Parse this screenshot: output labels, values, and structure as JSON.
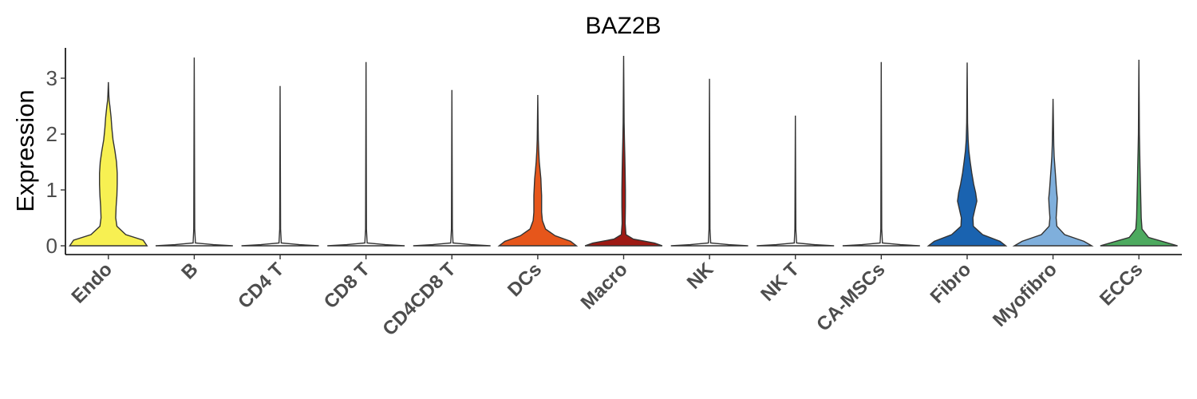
{
  "chart_data": {
    "type": "violin",
    "title": "BAZ2B",
    "ylabel": "Expression",
    "xlabel": "",
    "ylim": [
      -0.15,
      3.55
    ],
    "yticks": [
      0,
      1,
      2,
      3
    ],
    "grid": false,
    "legend": "none",
    "categories": [
      "Endo",
      "B",
      "CD4 T",
      "CD8 T",
      "CD4CD8 T",
      "DCs",
      "Macro",
      "NK",
      "NK T",
      "CA-MSCs",
      "Fibro",
      "Myofibro",
      "ECCs"
    ],
    "series": [
      {
        "color": "#F7F052",
        "max": 2.93,
        "density": [
          [
            0,
            1.0
          ],
          [
            0.1,
            0.9
          ],
          [
            0.2,
            0.45
          ],
          [
            0.35,
            0.22
          ],
          [
            0.5,
            0.19
          ],
          [
            0.7,
            0.2
          ],
          [
            0.9,
            0.22
          ],
          [
            1.1,
            0.23
          ],
          [
            1.3,
            0.23
          ],
          [
            1.5,
            0.21
          ],
          [
            1.7,
            0.17
          ],
          [
            1.9,
            0.12
          ],
          [
            2.1,
            0.09
          ],
          [
            2.3,
            0.07
          ],
          [
            2.5,
            0.04
          ],
          [
            2.6,
            0.02
          ],
          [
            2.7,
            0.012
          ],
          [
            2.93,
            0.0
          ]
        ]
      },
      {
        "color": "#FFFFFF",
        "max": 3.37,
        "density": [
          [
            0,
            1.0
          ],
          [
            0.02,
            0.5
          ],
          [
            0.05,
            0.03
          ],
          [
            0.3,
            0.012
          ],
          [
            3.37,
            0.0
          ]
        ]
      },
      {
        "color": "#FFFFFF",
        "max": 2.86,
        "density": [
          [
            0,
            1.0
          ],
          [
            0.02,
            0.5
          ],
          [
            0.05,
            0.03
          ],
          [
            0.3,
            0.012
          ],
          [
            2.86,
            0.0
          ]
        ]
      },
      {
        "color": "#FFFFFF",
        "max": 3.29,
        "density": [
          [
            0,
            1.0
          ],
          [
            0.02,
            0.5
          ],
          [
            0.05,
            0.03
          ],
          [
            0.3,
            0.012
          ],
          [
            3.29,
            0.0
          ]
        ]
      },
      {
        "color": "#FFFFFF",
        "max": 2.79,
        "density": [
          [
            0,
            1.0
          ],
          [
            0.02,
            0.5
          ],
          [
            0.05,
            0.03
          ],
          [
            0.3,
            0.012
          ],
          [
            2.79,
            0.0
          ]
        ]
      },
      {
        "color": "#E6561B",
        "max": 2.7,
        "density": [
          [
            0,
            1.0
          ],
          [
            0.08,
            0.85
          ],
          [
            0.18,
            0.45
          ],
          [
            0.3,
            0.2
          ],
          [
            0.45,
            0.12
          ],
          [
            0.6,
            0.1
          ],
          [
            0.75,
            0.1
          ],
          [
            0.9,
            0.1
          ],
          [
            1.05,
            0.09
          ],
          [
            1.2,
            0.08
          ],
          [
            1.35,
            0.06
          ],
          [
            1.5,
            0.04
          ],
          [
            1.7,
            0.025
          ],
          [
            1.9,
            0.015
          ],
          [
            2.1,
            0.01
          ],
          [
            2.7,
            0.0
          ]
        ]
      },
      {
        "color": "#9E1A14",
        "max": 3.4,
        "density": [
          [
            0,
            1.0
          ],
          [
            0.05,
            0.8
          ],
          [
            0.12,
            0.25
          ],
          [
            0.2,
            0.06
          ],
          [
            0.4,
            0.04
          ],
          [
            0.7,
            0.045
          ],
          [
            1.0,
            0.045
          ],
          [
            1.3,
            0.04
          ],
          [
            1.6,
            0.03
          ],
          [
            1.9,
            0.02
          ],
          [
            2.2,
            0.012
          ],
          [
            2.6,
            0.008
          ],
          [
            3.4,
            0.0
          ]
        ]
      },
      {
        "color": "#FFFFFF",
        "max": 2.99,
        "density": [
          [
            0,
            1.0
          ],
          [
            0.02,
            0.5
          ],
          [
            0.05,
            0.03
          ],
          [
            0.3,
            0.012
          ],
          [
            2.99,
            0.0
          ]
        ]
      },
      {
        "color": "#FFFFFF",
        "max": 2.33,
        "density": [
          [
            0,
            1.0
          ],
          [
            0.02,
            0.5
          ],
          [
            0.05,
            0.03
          ],
          [
            0.3,
            0.012
          ],
          [
            2.33,
            0.0
          ]
        ]
      },
      {
        "color": "#FFFFFF",
        "max": 3.29,
        "density": [
          [
            0,
            1.0
          ],
          [
            0.02,
            0.5
          ],
          [
            0.05,
            0.03
          ],
          [
            0.3,
            0.012
          ],
          [
            3.29,
            0.0
          ]
        ]
      },
      {
        "color": "#1A63B0",
        "max": 3.28,
        "density": [
          [
            0,
            1.0
          ],
          [
            0.08,
            0.85
          ],
          [
            0.2,
            0.4
          ],
          [
            0.35,
            0.16
          ],
          [
            0.5,
            0.15
          ],
          [
            0.65,
            0.2
          ],
          [
            0.8,
            0.25
          ],
          [
            0.95,
            0.22
          ],
          [
            1.1,
            0.17
          ],
          [
            1.3,
            0.12
          ],
          [
            1.5,
            0.08
          ],
          [
            1.7,
            0.045
          ],
          [
            1.9,
            0.025
          ],
          [
            2.2,
            0.012
          ],
          [
            3.28,
            0.0
          ]
        ]
      },
      {
        "color": "#7FAFDC",
        "max": 2.63,
        "density": [
          [
            0,
            1.0
          ],
          [
            0.08,
            0.8
          ],
          [
            0.2,
            0.3
          ],
          [
            0.35,
            0.1
          ],
          [
            0.5,
            0.08
          ],
          [
            0.7,
            0.1
          ],
          [
            0.85,
            0.11
          ],
          [
            1.0,
            0.09
          ],
          [
            1.2,
            0.07
          ],
          [
            1.4,
            0.05
          ],
          [
            1.6,
            0.03
          ],
          [
            1.8,
            0.02
          ],
          [
            2.2,
            0.01
          ],
          [
            2.63,
            0.0
          ]
        ]
      },
      {
        "color": "#4DAA5F",
        "max": 3.33,
        "density": [
          [
            0,
            1.0
          ],
          [
            0.06,
            0.7
          ],
          [
            0.15,
            0.25
          ],
          [
            0.3,
            0.08
          ],
          [
            0.5,
            0.06
          ],
          [
            0.8,
            0.05
          ],
          [
            1.1,
            0.04
          ],
          [
            1.4,
            0.03
          ],
          [
            1.7,
            0.02
          ],
          [
            2.0,
            0.012
          ],
          [
            2.5,
            0.008
          ],
          [
            3.33,
            0.0
          ]
        ]
      }
    ]
  }
}
